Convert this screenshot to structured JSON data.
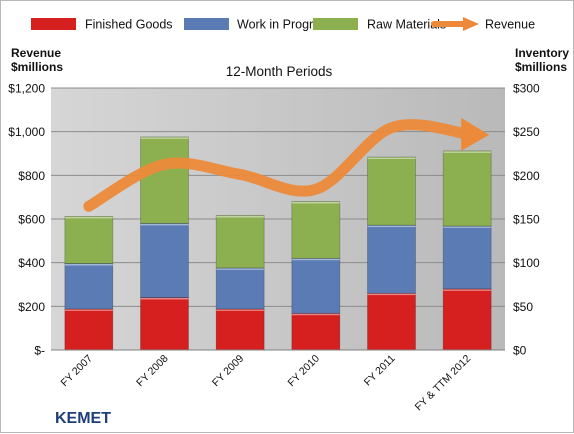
{
  "colors": {
    "finished_goods": "#d62020",
    "work_in_progress": "#5a7bb4",
    "raw_materials": "#8cb050",
    "revenue": "#ec8a3a",
    "plot_background": "#c4c4c4"
  },
  "chart_data": {
    "type": "bar",
    "stacked": true,
    "title": "12-Month Periods",
    "brand": "KEMET",
    "categories": [
      "FY 2007",
      "FY 2008",
      "FY 2009",
      "FY 2010",
      "FY 2011",
      "FY & TTM 2012"
    ],
    "series": [
      {
        "name": "Finished Goods",
        "axis": "inventory",
        "values": [
          47,
          60,
          47,
          42,
          65,
          70
        ]
      },
      {
        "name": "Work in Progress",
        "axis": "inventory",
        "values": [
          52,
          85,
          47,
          63,
          78,
          72
        ]
      },
      {
        "name": "Raw Materials",
        "axis": "inventory",
        "values": [
          54,
          99,
          60,
          65,
          78,
          86
        ]
      },
      {
        "name": "Revenue",
        "axis": "revenue",
        "type": "line",
        "values": [
          658,
          850,
          804,
          736,
          1018,
          990
        ]
      }
    ],
    "left_axis": {
      "label": [
        "Revenue",
        "$millions"
      ],
      "ticks": [
        "$-",
        "$200",
        "$400",
        "$600",
        "$800",
        "$1,000",
        "$1,200"
      ],
      "range": [
        0,
        1200
      ]
    },
    "right_axis": {
      "label": [
        "Inventory",
        "$millions"
      ],
      "ticks": [
        "$0",
        "$50",
        "$100",
        "$150",
        "$200",
        "$250",
        "$300"
      ],
      "range": [
        0,
        300
      ]
    },
    "legend_position": "top",
    "grid": true
  }
}
